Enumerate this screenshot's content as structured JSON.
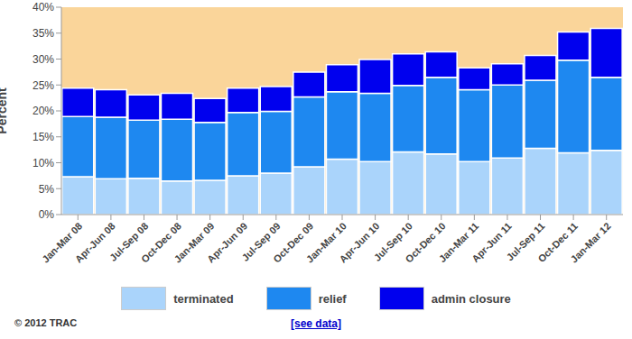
{
  "chart_data": {
    "type": "bar",
    "stacked": true,
    "y_label": "Percent",
    "annotations": [
      "© 2012 TRAC",
      "[see data]"
    ],
    "categories": [
      "Jan-Mar 08",
      "Apr-Jun 08",
      "Jul-Sep 08",
      "Oct-Dec 08",
      "Jan-Mar 09",
      "Apr-Jun 09",
      "Jul-Sep 09",
      "Oct-Dec 09",
      "Jan-Mar 10",
      "Apr-Jun 10",
      "Jul-Sep 10",
      "Oct-Dec 10",
      "Jan-Mar 11",
      "Apr-Jun 11",
      "Jul-Sep 11",
      "Oct-Dec 11",
      "Jan-Mar 12"
    ],
    "series": [
      {
        "name": "terminated",
        "color": "#aad4fb",
        "values": [
          7.3,
          6.9,
          7.0,
          6.5,
          6.6,
          7.5,
          8.0,
          9.2,
          10.7,
          10.2,
          12.1,
          11.7,
          10.2,
          10.9,
          12.8,
          11.9,
          12.4
        ]
      },
      {
        "name": "relief",
        "color": "#1e88f0",
        "values": [
          11.6,
          11.9,
          11.2,
          11.9,
          11.2,
          12.2,
          11.9,
          13.5,
          13.0,
          13.2,
          12.8,
          14.8,
          13.9,
          14.1,
          13.1,
          17.9,
          14.1
        ]
      },
      {
        "name": "admin closure",
        "color": "#0000ee",
        "values": [
          5.5,
          5.3,
          4.9,
          5.0,
          4.6,
          4.7,
          4.8,
          4.8,
          5.2,
          6.5,
          6.1,
          4.9,
          4.2,
          4.1,
          4.8,
          5.4,
          9.4
        ]
      }
    ],
    "ylim": [
      0,
      40
    ],
    "yticks": [
      {
        "value": 0,
        "label": "0%"
      },
      {
        "value": 5,
        "label": "5%"
      },
      {
        "value": 10,
        "label": "10%"
      },
      {
        "value": 15,
        "label": "15%"
      },
      {
        "value": 20,
        "label": "20%"
      },
      {
        "value": 25,
        "label": "25%"
      },
      {
        "value": 30,
        "label": "30%"
      },
      {
        "value": 35,
        "label": "35%"
      },
      {
        "value": 40,
        "label": "40%"
      }
    ],
    "grid": false,
    "legend": "bottom"
  }
}
